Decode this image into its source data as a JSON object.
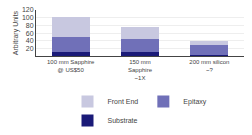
{
  "chart_data": {
    "type": "bar",
    "stacked": true,
    "categories": [
      "100 mm Sapphire\n@ US$50",
      "150 mm\nSapphire\n~1X",
      "200 mm silicon\n~?"
    ],
    "series": [
      {
        "name": "Substrate",
        "color": "#1a1a78",
        "values": [
          12,
          10,
          3
        ]
      },
      {
        "name": "Epitaxy",
        "color": "#7070b8",
        "values": [
          38,
          35,
          27
        ]
      },
      {
        "name": "Front End",
        "color": "#c8c8e0",
        "values": [
          52,
          30,
          10
        ]
      }
    ],
    "ylabel": "Arbitrary Units",
    "ylim": [
      0,
      120
    ],
    "yticks": [
      20,
      40,
      60,
      80,
      100,
      120
    ],
    "grid": true,
    "legend": "bottom"
  }
}
